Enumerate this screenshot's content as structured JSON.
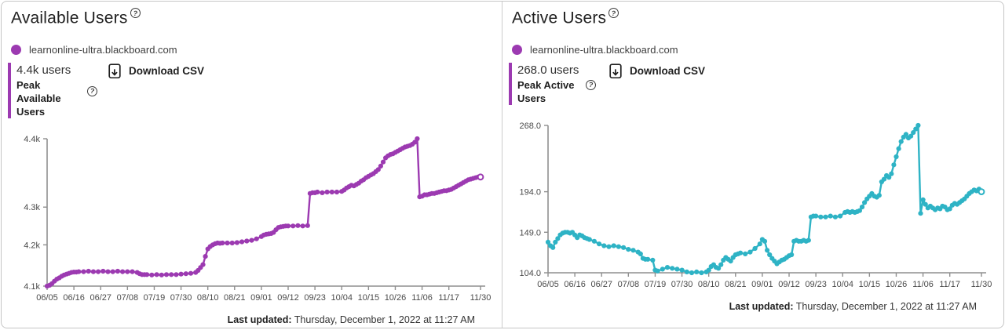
{
  "icons": {
    "help_glyph": "?"
  },
  "panels": [
    {
      "title": "Available Users",
      "legend": {
        "label": "learnonline-ultra.blackboard.com",
        "color": "#9c3ab1"
      },
      "stat": {
        "value": "4.4k users",
        "label_line1": "Peak Available",
        "label_line2": "Users"
      },
      "download_label": "Download CSV",
      "footer": {
        "prefix": "Last updated:",
        "text": " Thursday, December 1, 2022 at 11:27 AM"
      }
    },
    {
      "title": "Active Users",
      "legend": {
        "label": "learnonline-ultra.blackboard.com",
        "color": "#9c3ab1"
      },
      "stat": {
        "value": "268.0 users",
        "label_line1": "Peak Active",
        "label_line2": "Users"
      },
      "download_label": "Download CSV",
      "footer": {
        "prefix": "Last updated:",
        "text": " Thursday, December 1, 2022 at 11:27 AM"
      }
    }
  ],
  "chart_data": [
    {
      "type": "line",
      "title": "Available Users",
      "series_name": "learnonline-ultra.blackboard.com",
      "color": "#9c3ab1",
      "grid": false,
      "legend_position": "top-left",
      "x_range": [
        "06/05",
        "11/30"
      ],
      "x_ticks": [
        "06/05",
        "06/16",
        "06/27",
        "07/08",
        "07/19",
        "07/30",
        "08/10",
        "08/21",
        "09/01",
        "09/12",
        "09/23",
        "10/04",
        "10/15",
        "10/26",
        "11/06",
        "11/17",
        "11/30"
      ],
      "y_ticks": [
        {
          "label": "4.1k",
          "value": 4100,
          "pos": 0
        },
        {
          "label": "4.2k",
          "value": 4200,
          "pos": 0.28
        },
        {
          "label": "4.3k",
          "value": 4300,
          "pos": 0.536
        },
        {
          "label": "4.4k",
          "value": 4400,
          "pos": 1
        }
      ],
      "last_point_open": true,
      "points": [
        [
          "06/05",
          4100
        ],
        [
          "06/06",
          4102
        ],
        [
          "06/07",
          4106
        ],
        [
          "06/08",
          4112
        ],
        [
          "06/09",
          4117
        ],
        [
          "06/10",
          4120
        ],
        [
          "06/11",
          4124
        ],
        [
          "06/12",
          4127
        ],
        [
          "06/13",
          4129
        ],
        [
          "06/14",
          4131
        ],
        [
          "06/15",
          4133
        ],
        [
          "06/16",
          4134
        ],
        [
          "06/17",
          4134
        ],
        [
          "06/18",
          4135
        ],
        [
          "06/20",
          4135
        ],
        [
          "06/22",
          4136
        ],
        [
          "06/24",
          4135
        ],
        [
          "06/26",
          4135
        ],
        [
          "06/28",
          4136
        ],
        [
          "06/30",
          4135
        ],
        [
          "07/02",
          4135
        ],
        [
          "07/04",
          4136
        ],
        [
          "07/06",
          4135
        ],
        [
          "07/08",
          4135
        ],
        [
          "07/10",
          4135
        ],
        [
          "07/12",
          4133
        ],
        [
          "07/13",
          4130
        ],
        [
          "07/14",
          4128
        ],
        [
          "07/15",
          4128
        ],
        [
          "07/16",
          4128
        ],
        [
          "07/18",
          4127
        ],
        [
          "07/20",
          4128
        ],
        [
          "07/22",
          4127
        ],
        [
          "07/24",
          4128
        ],
        [
          "07/26",
          4128
        ],
        [
          "07/28",
          4128
        ],
        [
          "07/30",
          4129
        ],
        [
          "08/01",
          4130
        ],
        [
          "08/03",
          4131
        ],
        [
          "08/05",
          4133
        ],
        [
          "08/06",
          4138
        ],
        [
          "08/07",
          4145
        ],
        [
          "08/08",
          4152
        ],
        [
          "08/09",
          4172
        ],
        [
          "08/10",
          4190
        ],
        [
          "08/11",
          4196
        ],
        [
          "08/12",
          4200
        ],
        [
          "08/13",
          4203
        ],
        [
          "08/14",
          4205
        ],
        [
          "08/15",
          4204
        ],
        [
          "08/16",
          4205
        ],
        [
          "08/18",
          4205
        ],
        [
          "08/20",
          4205
        ],
        [
          "08/22",
          4206
        ],
        [
          "08/24",
          4208
        ],
        [
          "08/26",
          4210
        ],
        [
          "08/28",
          4212
        ],
        [
          "08/30",
          4216
        ],
        [
          "09/01",
          4222
        ],
        [
          "09/02",
          4226
        ],
        [
          "09/03",
          4228
        ],
        [
          "09/04",
          4229
        ],
        [
          "09/05",
          4230
        ],
        [
          "09/06",
          4233
        ],
        [
          "09/07",
          4240
        ],
        [
          "09/08",
          4246
        ],
        [
          "09/09",
          4248
        ],
        [
          "09/10",
          4249
        ],
        [
          "09/11",
          4250
        ],
        [
          "09/12",
          4250
        ],
        [
          "09/14",
          4250
        ],
        [
          "09/16",
          4251
        ],
        [
          "09/18",
          4250
        ],
        [
          "09/20",
          4251
        ],
        [
          "09/21",
          4320
        ],
        [
          "09/22",
          4321
        ],
        [
          "09/23",
          4321
        ],
        [
          "09/24",
          4322
        ],
        [
          "09/26",
          4321
        ],
        [
          "09/28",
          4322
        ],
        [
          "09/30",
          4322
        ],
        [
          "10/02",
          4322
        ],
        [
          "10/04",
          4323
        ],
        [
          "10/05",
          4325
        ],
        [
          "10/06",
          4328
        ],
        [
          "10/07",
          4330
        ],
        [
          "10/08",
          4332
        ],
        [
          "10/09",
          4331
        ],
        [
          "10/10",
          4333
        ],
        [
          "10/11",
          4335
        ],
        [
          "10/12",
          4338
        ],
        [
          "10/13",
          4340
        ],
        [
          "10/14",
          4343
        ],
        [
          "10/15",
          4345
        ],
        [
          "10/16",
          4347
        ],
        [
          "10/17",
          4349
        ],
        [
          "10/18",
          4352
        ],
        [
          "10/19",
          4355
        ],
        [
          "10/20",
          4360
        ],
        [
          "10/21",
          4366
        ],
        [
          "10/22",
          4372
        ],
        [
          "10/23",
          4375
        ],
        [
          "10/24",
          4377
        ],
        [
          "10/25",
          4378
        ],
        [
          "10/26",
          4380
        ],
        [
          "10/27",
          4382
        ],
        [
          "10/28",
          4384
        ],
        [
          "10/29",
          4386
        ],
        [
          "10/30",
          4388
        ],
        [
          "10/31",
          4389
        ],
        [
          "11/01",
          4390
        ],
        [
          "11/02",
          4392
        ],
        [
          "11/03",
          4395
        ],
        [
          "11/04",
          4400
        ],
        [
          "11/05",
          4315
        ],
        [
          "11/06",
          4316
        ],
        [
          "11/07",
          4318
        ],
        [
          "11/08",
          4318
        ],
        [
          "11/09",
          4319
        ],
        [
          "11/10",
          4320
        ],
        [
          "11/11",
          4320
        ],
        [
          "11/12",
          4321
        ],
        [
          "11/13",
          4322
        ],
        [
          "11/14",
          4323
        ],
        [
          "11/15",
          4324
        ],
        [
          "11/16",
          4324
        ],
        [
          "11/17",
          4325
        ],
        [
          "11/18",
          4326
        ],
        [
          "11/19",
          4328
        ],
        [
          "11/20",
          4330
        ],
        [
          "11/21",
          4332
        ],
        [
          "11/22",
          4334
        ],
        [
          "11/23",
          4336
        ],
        [
          "11/24",
          4338
        ],
        [
          "11/25",
          4340
        ],
        [
          "11/26",
          4341
        ],
        [
          "11/27",
          4342
        ],
        [
          "11/28",
          4343
        ],
        [
          "11/29",
          4344
        ],
        [
          "11/30",
          4344
        ]
      ]
    },
    {
      "type": "line",
      "title": "Active Users",
      "series_name": "learnonline-ultra.blackboard.com",
      "color": "#2eb3c5",
      "grid": false,
      "legend_position": "top-left",
      "x_range": [
        "06/05",
        "11/30"
      ],
      "x_ticks": [
        "06/05",
        "06/16",
        "06/27",
        "07/08",
        "07/19",
        "07/30",
        "08/10",
        "08/21",
        "09/01",
        "09/12",
        "09/23",
        "10/04",
        "10/15",
        "10/26",
        "11/06",
        "11/17",
        "11/30"
      ],
      "y_ticks": [
        {
          "label": "104.0",
          "value": 104,
          "pos": 0
        },
        {
          "label": "149.0",
          "value": 149,
          "pos": 0.275
        },
        {
          "label": "194.0",
          "value": 194,
          "pos": 0.55
        },
        {
          "label": "268.0",
          "value": 268,
          "pos": 1
        }
      ],
      "last_point_open": true,
      "points": [
        [
          "06/05",
          138
        ],
        [
          "06/06",
          134
        ],
        [
          "06/07",
          132
        ],
        [
          "06/08",
          138
        ],
        [
          "06/09",
          142
        ],
        [
          "06/10",
          146
        ],
        [
          "06/11",
          148
        ],
        [
          "06/12",
          149
        ],
        [
          "06/13",
          149
        ],
        [
          "06/14",
          148
        ],
        [
          "06/15",
          149
        ],
        [
          "06/16",
          146
        ],
        [
          "06/17",
          143
        ],
        [
          "06/18",
          146
        ],
        [
          "06/19",
          145
        ],
        [
          "06/20",
          143
        ],
        [
          "06/21",
          142
        ],
        [
          "06/22",
          141
        ],
        [
          "06/24",
          139
        ],
        [
          "06/26",
          136
        ],
        [
          "06/28",
          134
        ],
        [
          "06/30",
          133
        ],
        [
          "07/02",
          134
        ],
        [
          "07/04",
          133
        ],
        [
          "07/06",
          132
        ],
        [
          "07/08",
          130
        ],
        [
          "07/10",
          129
        ],
        [
          "07/12",
          127
        ],
        [
          "07/13",
          125
        ],
        [
          "07/14",
          120
        ],
        [
          "07/15",
          119
        ],
        [
          "07/16",
          119
        ],
        [
          "07/18",
          118
        ],
        [
          "07/19",
          107
        ],
        [
          "07/20",
          106
        ],
        [
          "07/22",
          108
        ],
        [
          "07/24",
          110
        ],
        [
          "07/26",
          109
        ],
        [
          "07/28",
          108
        ],
        [
          "07/30",
          107
        ],
        [
          "08/01",
          105
        ],
        [
          "08/03",
          104
        ],
        [
          "08/05",
          105
        ],
        [
          "08/07",
          104
        ],
        [
          "08/09",
          105
        ],
        [
          "08/10",
          107
        ],
        [
          "08/11",
          111
        ],
        [
          "08/12",
          113
        ],
        [
          "08/13",
          110
        ],
        [
          "08/14",
          109
        ],
        [
          "08/15",
          113
        ],
        [
          "08/16",
          118
        ],
        [
          "08/17",
          121
        ],
        [
          "08/18",
          119
        ],
        [
          "08/19",
          117
        ],
        [
          "08/20",
          121
        ],
        [
          "08/21",
          124
        ],
        [
          "08/22",
          125
        ],
        [
          "08/23",
          126
        ],
        [
          "08/25",
          125
        ],
        [
          "08/27",
          127
        ],
        [
          "08/29",
          131
        ],
        [
          "08/31",
          136
        ],
        [
          "09/01",
          141
        ],
        [
          "09/02",
          139
        ],
        [
          "09/03",
          129
        ],
        [
          "09/04",
          124
        ],
        [
          "09/05",
          120
        ],
        [
          "09/06",
          117
        ],
        [
          "09/07",
          114
        ],
        [
          "09/08",
          116
        ],
        [
          "09/09",
          118
        ],
        [
          "09/10",
          119
        ],
        [
          "09/11",
          121
        ],
        [
          "09/12",
          123
        ],
        [
          "09/13",
          124
        ],
        [
          "09/14",
          139
        ],
        [
          "09/15",
          140
        ],
        [
          "09/16",
          139
        ],
        [
          "09/17",
          139
        ],
        [
          "09/18",
          140
        ],
        [
          "09/19",
          139
        ],
        [
          "09/20",
          140
        ],
        [
          "09/21",
          166
        ],
        [
          "09/22",
          167
        ],
        [
          "09/23",
          167
        ],
        [
          "09/25",
          166
        ],
        [
          "09/27",
          166
        ],
        [
          "09/29",
          167
        ],
        [
          "10/01",
          166
        ],
        [
          "10/03",
          167
        ],
        [
          "10/05",
          171
        ],
        [
          "10/06",
          172
        ],
        [
          "10/07",
          171
        ],
        [
          "10/08",
          172
        ],
        [
          "10/09",
          171
        ],
        [
          "10/10",
          172
        ],
        [
          "10/11",
          173
        ],
        [
          "10/12",
          177
        ],
        [
          "10/13",
          182
        ],
        [
          "10/14",
          186
        ],
        [
          "10/15",
          189
        ],
        [
          "10/16",
          192
        ],
        [
          "10/17",
          189
        ],
        [
          "10/18",
          188
        ],
        [
          "10/19",
          190
        ],
        [
          "10/20",
          205
        ],
        [
          "10/21",
          208
        ],
        [
          "10/22",
          212
        ],
        [
          "10/23",
          210
        ],
        [
          "10/24",
          214
        ],
        [
          "10/25",
          224
        ],
        [
          "10/26",
          233
        ],
        [
          "10/27",
          242
        ],
        [
          "10/28",
          250
        ],
        [
          "10/29",
          255
        ],
        [
          "10/30",
          258
        ],
        [
          "10/31",
          254
        ],
        [
          "11/01",
          256
        ],
        [
          "11/02",
          260
        ],
        [
          "11/03",
          264
        ],
        [
          "11/04",
          268
        ],
        [
          "11/05",
          170
        ],
        [
          "11/06",
          185
        ],
        [
          "11/07",
          180
        ],
        [
          "11/08",
          176
        ],
        [
          "11/09",
          178
        ],
        [
          "11/10",
          176
        ],
        [
          "11/11",
          174
        ],
        [
          "11/12",
          176
        ],
        [
          "11/13",
          175
        ],
        [
          "11/14",
          178
        ],
        [
          "11/15",
          177
        ],
        [
          "11/16",
          174
        ],
        [
          "11/17",
          175
        ],
        [
          "11/18",
          179
        ],
        [
          "11/19",
          181
        ],
        [
          "11/20",
          180
        ],
        [
          "11/21",
          182
        ],
        [
          "11/22",
          184
        ],
        [
          "11/23",
          186
        ],
        [
          "11/24",
          189
        ],
        [
          "11/25",
          192
        ],
        [
          "11/26",
          194
        ],
        [
          "11/27",
          196
        ],
        [
          "11/28",
          195
        ],
        [
          "11/29",
          197
        ],
        [
          "11/30",
          194
        ]
      ]
    }
  ]
}
